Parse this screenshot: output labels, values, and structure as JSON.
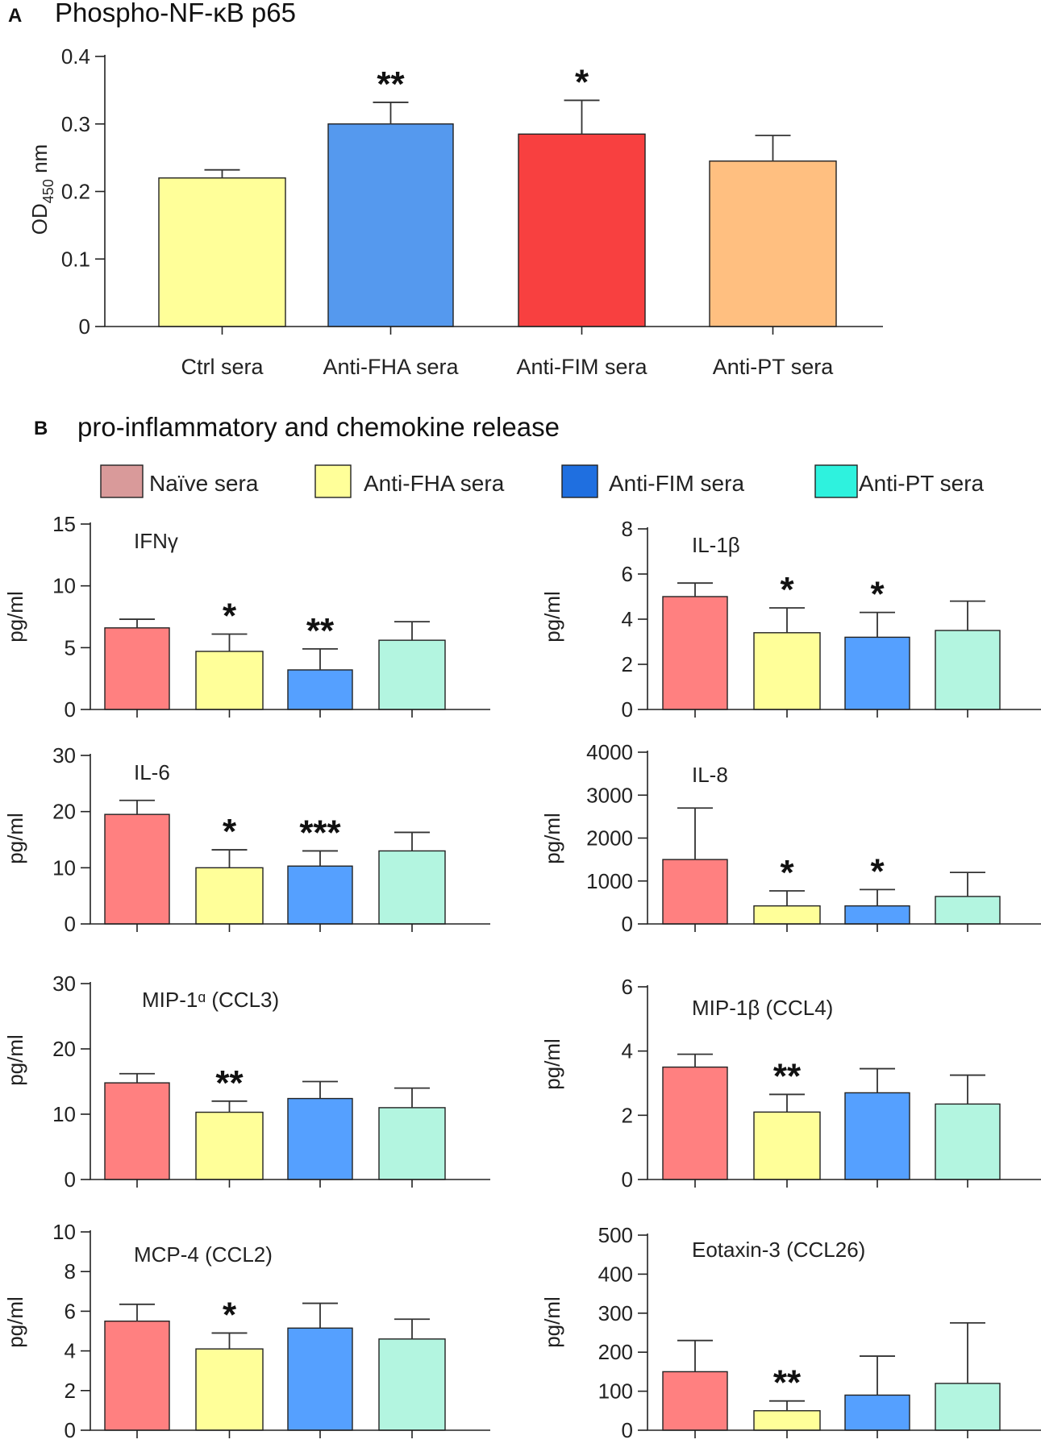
{
  "panel_a": {
    "letter": "A",
    "title": "Phospho-NF-κB  p65"
  },
  "panel_b": {
    "letter": "B",
    "title": "pro-inflammatory  and chemokine  release"
  },
  "legend": [
    {
      "label": "Naïve  sera",
      "color": "#d99a9a"
    },
    {
      "label": "Anti-FHA sera",
      "color": "#ffff99"
    },
    {
      "label": "Anti-FIM sera",
      "color": "#1f6fe0"
    },
    {
      "label": "Anti-PT sera",
      "color": "#2ef2de"
    }
  ],
  "chart_data": [
    {
      "id": "nfkb",
      "type": "bar",
      "title": "Phospho-NF-κB  p65",
      "ylabel": "OD450 nm",
      "ylabel_main": "OD",
      "ylabel_sub": "450",
      "ylabel_unit": " nm",
      "categories": [
        "Ctrl sera",
        "Anti-FHA sera",
        "Anti-FIM sera",
        "Anti-PT sera"
      ],
      "values": [
        0.22,
        0.3,
        0.285,
        0.245
      ],
      "errors": [
        0.012,
        0.032,
        0.05,
        0.038
      ],
      "colors": [
        "#ffff99",
        "#5599ee",
        "#f84040",
        "#ffbf80"
      ],
      "significance": [
        "",
        "**",
        "*",
        ""
      ],
      "ylim": [
        0,
        0.4
      ],
      "yticks": [
        0,
        0.1,
        0.2,
        0.3,
        0.4
      ],
      "ytick_labels": [
        "0",
        "0.1",
        "0.2",
        "0.3",
        "0.4"
      ]
    },
    {
      "id": "ifng",
      "type": "bar",
      "title": "IFNγ",
      "ylabel": "pg/ml",
      "values": [
        6.6,
        4.7,
        3.2,
        5.6
      ],
      "errors": [
        0.7,
        1.4,
        1.7,
        1.5
      ],
      "colors": [
        "#ff8080",
        "#ffff99",
        "#55a0ff",
        "#b3f5e0"
      ],
      "significance": [
        "",
        "*",
        "**",
        ""
      ],
      "ylim": [
        0,
        15
      ],
      "yticks": [
        0,
        5,
        10,
        15
      ],
      "ytick_labels": [
        "0",
        "5",
        "10",
        "15"
      ]
    },
    {
      "id": "il1b",
      "type": "bar",
      "title": "IL-1β",
      "ylabel": "pg/ml",
      "values": [
        5.0,
        3.4,
        3.2,
        3.5
      ],
      "errors": [
        0.6,
        1.1,
        1.1,
        1.3
      ],
      "colors": [
        "#ff8080",
        "#ffff99",
        "#55a0ff",
        "#b3f5e0"
      ],
      "significance": [
        "",
        "*",
        "*",
        ""
      ],
      "ylim": [
        0,
        8
      ],
      "yticks": [
        0,
        2,
        4,
        6,
        8
      ],
      "ytick_labels": [
        "0",
        "2",
        "4",
        "6",
        "8"
      ]
    },
    {
      "id": "il6",
      "type": "bar",
      "title": "IL-6",
      "ylabel": "pg/ml",
      "values": [
        19.5,
        10.0,
        10.3,
        13.0
      ],
      "errors": [
        2.5,
        3.2,
        2.7,
        3.3
      ],
      "colors": [
        "#ff8080",
        "#ffff99",
        "#55a0ff",
        "#b3f5e0"
      ],
      "significance": [
        "",
        "*",
        "***",
        ""
      ],
      "ylim": [
        0,
        30
      ],
      "yticks": [
        0,
        10,
        20,
        30
      ],
      "ytick_labels": [
        "0",
        "10",
        "20",
        "30"
      ]
    },
    {
      "id": "il8",
      "type": "bar",
      "title": "IL-8",
      "ylabel": "pg/ml",
      "values": [
        1500,
        420,
        420,
        640
      ],
      "errors": [
        1200,
        350,
        380,
        560
      ],
      "colors": [
        "#ff8080",
        "#ffff99",
        "#55a0ff",
        "#b3f5e0"
      ],
      "significance": [
        "",
        "*",
        "*",
        ""
      ],
      "ylim": [
        0,
        4000
      ],
      "yticks": [
        0,
        1000,
        2000,
        3000,
        4000
      ],
      "ytick_labels": [
        "0",
        "1000",
        "2000",
        "3000",
        "4000"
      ]
    },
    {
      "id": "mip1a",
      "type": "bar",
      "title": "MIP-1ᵅ (CCL3)",
      "ylabel": "pg/ml",
      "values": [
        14.8,
        10.3,
        12.4,
        11.0
      ],
      "errors": [
        1.4,
        1.7,
        2.6,
        3.0
      ],
      "colors": [
        "#ff8080",
        "#ffff99",
        "#55a0ff",
        "#b3f5e0"
      ],
      "significance": [
        "",
        "**",
        "",
        ""
      ],
      "ylim": [
        0,
        30
      ],
      "yticks": [
        0,
        10,
        20,
        30
      ],
      "ytick_labels": [
        "0",
        "10",
        "20",
        "30"
      ]
    },
    {
      "id": "mip1b",
      "type": "bar",
      "title": "MIP-1β (CCL4)",
      "ylabel": "pg/ml",
      "values": [
        3.5,
        2.1,
        2.7,
        2.35
      ],
      "errors": [
        0.4,
        0.55,
        0.75,
        0.9
      ],
      "colors": [
        "#ff8080",
        "#ffff99",
        "#55a0ff",
        "#b3f5e0"
      ],
      "significance": [
        "",
        "**",
        "",
        ""
      ],
      "ylim": [
        0,
        6
      ],
      "yticks": [
        0,
        2,
        4,
        6
      ],
      "ytick_labels": [
        "0",
        "2",
        "4",
        "6"
      ]
    },
    {
      "id": "mcp4",
      "type": "bar",
      "title": "MCP-4 (CCL2)",
      "ylabel": "pg/ml",
      "values": [
        5.5,
        4.1,
        5.15,
        4.6
      ],
      "errors": [
        0.85,
        0.8,
        1.25,
        1.0
      ],
      "colors": [
        "#ff8080",
        "#ffff99",
        "#55a0ff",
        "#b3f5e0"
      ],
      "significance": [
        "",
        "*",
        "",
        ""
      ],
      "ylim": [
        0,
        10
      ],
      "yticks": [
        0,
        2,
        4,
        6,
        8,
        10
      ],
      "ytick_labels": [
        "0",
        "2",
        "4",
        "6",
        "8",
        "10"
      ]
    },
    {
      "id": "eotaxin3",
      "type": "bar",
      "title": "Eotaxin-3 (CCL26)",
      "ylabel": "pg/ml",
      "values": [
        150,
        50,
        90,
        120
      ],
      "errors": [
        80,
        25,
        100,
        155
      ],
      "colors": [
        "#ff8080",
        "#ffff99",
        "#55a0ff",
        "#b3f5e0"
      ],
      "significance": [
        "",
        "**",
        "",
        ""
      ],
      "ylim": [
        0,
        500
      ],
      "yticks": [
        0,
        100,
        200,
        300,
        400,
        500
      ],
      "ytick_labels": [
        "0",
        "100",
        "200",
        "300",
        "400",
        "500"
      ]
    }
  ]
}
